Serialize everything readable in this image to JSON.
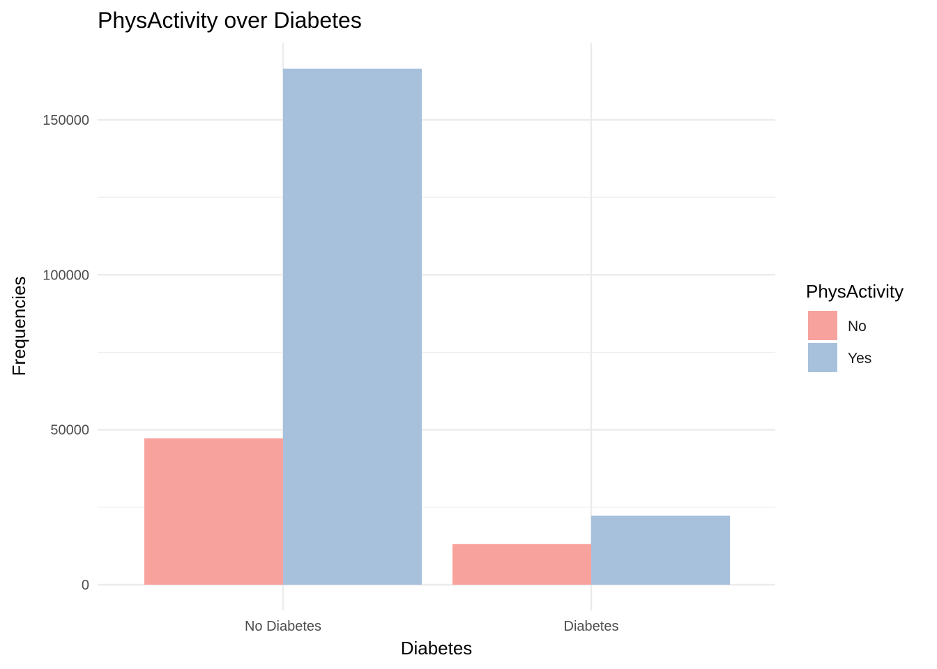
{
  "chart_data": {
    "type": "bar",
    "title": "PhysActivity over Diabetes",
    "xlabel": "Diabetes",
    "ylabel": "Frequencies",
    "categories": [
      "No Diabetes",
      "Diabetes"
    ],
    "series": [
      {
        "name": "No",
        "values": [
          47200,
          13100
        ],
        "color": "#f8a29e"
      },
      {
        "name": "Yes",
        "values": [
          166500,
          22300
        ],
        "color": "#a7c1dc"
      }
    ],
    "ylim": [
      0,
      170000
    ],
    "yticks": [
      0,
      50000,
      100000,
      150000
    ],
    "ytick_labels": [
      "0",
      "50000",
      "100000",
      "150000"
    ],
    "grid": true,
    "legend": {
      "title": "PhysActivity",
      "position": "right"
    }
  }
}
